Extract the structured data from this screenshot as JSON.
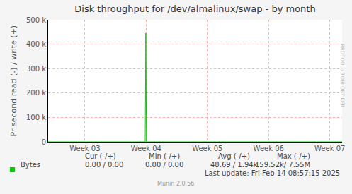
{
  "chart_data": {
    "type": "line",
    "title": "Disk throughput for /dev/almalinux/swap - by month",
    "y_label": "Pr second read (-) / write (+)",
    "x": [
      2.4,
      3.985,
      3.995,
      4.005,
      7.2
    ],
    "series": [
      {
        "name": "Bytes",
        "color": "#00cc00",
        "values": [
          0,
          0,
          445000,
          0,
          0
        ]
      }
    ],
    "xlim": [
      2.4,
      7.2
    ],
    "xticks": [
      {
        "value": 3,
        "label": "Week 03"
      },
      {
        "value": 4,
        "label": "Week 04"
      },
      {
        "value": 5,
        "label": "Week 05"
      },
      {
        "value": 6,
        "label": "Week 06"
      },
      {
        "value": 7,
        "label": "Week 07"
      }
    ],
    "ylim": [
      0,
      500000
    ],
    "yticks": [
      0,
      {
        "value": 100000,
        "label": "100 k"
      },
      {
        "value": 200000,
        "label": "200 k"
      },
      {
        "value": 300000,
        "label": "300 k"
      },
      {
        "value": 400000,
        "label": "400 k"
      },
      {
        "value": 500000,
        "label": "500 k"
      }
    ],
    "grid": true,
    "legend_table": {
      "columns": [
        "Cur (-/+)",
        "Min (-/+)",
        "Avg (-/+)",
        "Max (-/+)"
      ],
      "rows": [
        {
          "name": "Bytes",
          "cells": [
            "0.00 / 0.00",
            "0.00 / 0.00",
            "48.69 / 1.94k",
            "159.52k/ 7.55M"
          ]
        }
      ]
    },
    "footer": "Last update: Fri Feb 14 08:57:15 2025",
    "credit": "Munin 2.0.56",
    "side_text": "RRDTOOL / TOBI OETIKER"
  }
}
